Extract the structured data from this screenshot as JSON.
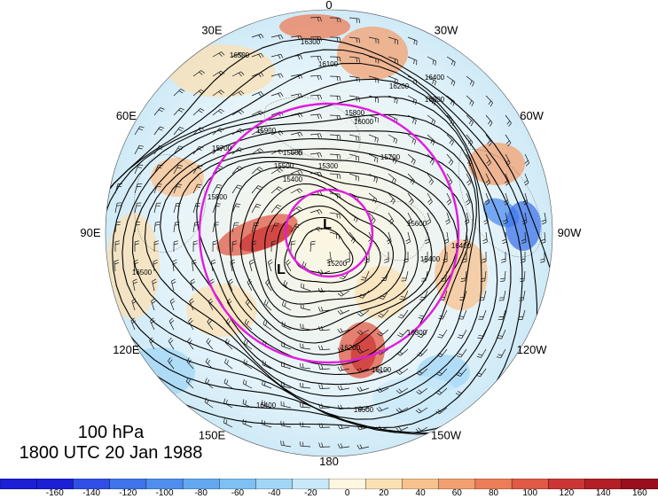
{
  "figure": {
    "level": "100 hPa",
    "time": "1800 UTC 20 Jan 1988"
  },
  "longitude_labels": [
    {
      "id": "lon-0",
      "text": "0",
      "angle": 0
    },
    {
      "id": "lon-30w",
      "text": "30W",
      "angle": 30
    },
    {
      "id": "lon-60w",
      "text": "60W",
      "angle": 60
    },
    {
      "id": "lon-90w",
      "text": "90W",
      "angle": 90
    },
    {
      "id": "lon-120w",
      "text": "120W",
      "angle": 120
    },
    {
      "id": "lon-150w",
      "text": "150W",
      "angle": 150
    },
    {
      "id": "lon-180",
      "text": "180",
      "angle": 180
    },
    {
      "id": "lon-150e",
      "text": "150E",
      "angle": 210
    },
    {
      "id": "lon-120e",
      "text": "120E",
      "angle": 240
    },
    {
      "id": "lon-90e",
      "text": "90E",
      "angle": 270
    },
    {
      "id": "lon-60e",
      "text": "60E",
      "angle": 300
    },
    {
      "id": "lon-30e",
      "text": "30E",
      "angle": 330
    }
  ],
  "contour_labels": [
    "15200",
    "15300",
    "15400",
    "15500",
    "15600",
    "15700",
    "15800",
    "15900",
    "16000",
    "16100",
    "16200",
    "16300",
    "16400",
    "16500"
  ],
  "low_centers": [
    {
      "id": "low-north",
      "text": "L"
    },
    {
      "id": "low-south",
      "text": "L"
    }
  ],
  "colorbar": {
    "ticks": [
      "-160",
      "-140",
      "-120",
      "-100",
      "-80",
      "-60",
      "-40",
      "-20",
      "0",
      "20",
      "40",
      "60",
      "80",
      "100",
      "120",
      "140",
      "160"
    ],
    "colors": [
      "#1c1fd6",
      "#2f4fe6",
      "#3f74ea",
      "#4f8eee",
      "#63a7f1",
      "#7ec0f3",
      "#a2d6f6",
      "#c9e9f8",
      "#fdf6e0",
      "#fbe0b3",
      "#f8c28e",
      "#f3a070",
      "#ec7d58",
      "#e05a45",
      "#cc3535",
      "#b41e27",
      "#9a0f1d"
    ]
  },
  "colors": {
    "polar_circle": "#e01ce0",
    "contour": "#000000",
    "background_field": "#c9e9f8"
  }
}
